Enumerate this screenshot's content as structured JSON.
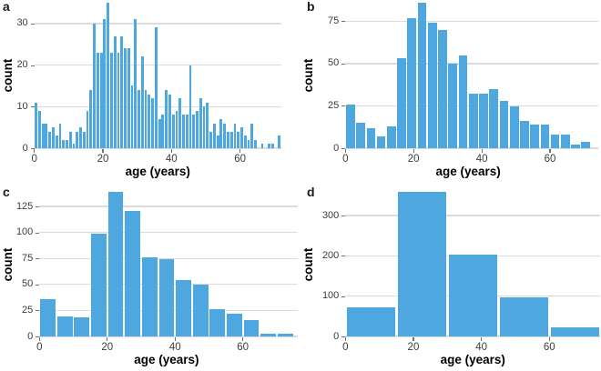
{
  "colors": {
    "background": "#FFFFFF",
    "bar": "#4FA7E0",
    "gridline": "#DCDCDC",
    "tick_mark": "#707070",
    "tick_label": "#3D3D3D",
    "axis_title": "#000000",
    "panel_letter": "#1A1A1A"
  },
  "chart_data": [
    {
      "type": "bar",
      "panel_label": "a",
      "xlabel": "age (years)",
      "ylabel": "count",
      "bin_start": 0,
      "bin_width": 1,
      "values": [
        11,
        9,
        6,
        6,
        4,
        5,
        3,
        6,
        2,
        2,
        4,
        1,
        4,
        5,
        4,
        9,
        14,
        30,
        23,
        23,
        31,
        35,
        23,
        27,
        23,
        27,
        24,
        24,
        15,
        31,
        14,
        22,
        14,
        13,
        12,
        29,
        7,
        8,
        14,
        13,
        8,
        9,
        12,
        8,
        8,
        20,
        8,
        9,
        12,
        10,
        11,
        4,
        6,
        3,
        7,
        6,
        4,
        4,
        6,
        4,
        5,
        3,
        2,
        6,
        2,
        0,
        1,
        0,
        1,
        1,
        0,
        3
      ],
      "xlim": [
        0,
        72
      ],
      "ylim": [
        0,
        35
      ],
      "xticks": [
        0,
        20,
        40,
        60
      ],
      "yticks": [
        0,
        10,
        20,
        30
      ],
      "grid": true,
      "legend": "none"
    },
    {
      "type": "bar",
      "panel_label": "b",
      "xlabel": "age (years)",
      "ylabel": "count",
      "bin_start": 0,
      "bin_width": 3,
      "values": [
        26,
        15,
        12,
        7,
        13,
        53,
        77,
        86,
        74,
        70,
        50,
        55,
        32,
        32,
        35,
        28,
        25,
        16,
        14,
        14,
        8,
        8,
        2,
        4
      ],
      "xlim": [
        0,
        72
      ],
      "ylim": [
        0,
        86
      ],
      "xticks": [
        0,
        20,
        40,
        60
      ],
      "yticks": [
        0,
        25,
        50,
        75
      ],
      "grid": true,
      "legend": "none"
    },
    {
      "type": "bar",
      "panel_label": "c",
      "xlabel": "age (years)",
      "ylabel": "count",
      "bin_start": 0,
      "bin_width": 5,
      "values": [
        36,
        19,
        18,
        99,
        139,
        121,
        76,
        74,
        54,
        50,
        26,
        22,
        16,
        3,
        3
      ],
      "xlim": [
        0,
        75
      ],
      "ylim": [
        0,
        139
      ],
      "xticks": [
        0,
        20,
        40,
        60
      ],
      "yticks": [
        0,
        25,
        50,
        75,
        100,
        125
      ],
      "grid": true,
      "legend": "none"
    },
    {
      "type": "bar",
      "panel_label": "d",
      "xlabel": "age (years)",
      "ylabel": "count",
      "bin_start": 0,
      "bin_width": 15,
      "values": [
        73,
        359,
        204,
        98,
        22
      ],
      "xlim": [
        0,
        75
      ],
      "ylim": [
        0,
        359
      ],
      "xticks": [
        0,
        20,
        40,
        60
      ],
      "yticks": [
        0,
        100,
        200,
        300
      ],
      "grid": true,
      "legend": "none"
    }
  ]
}
